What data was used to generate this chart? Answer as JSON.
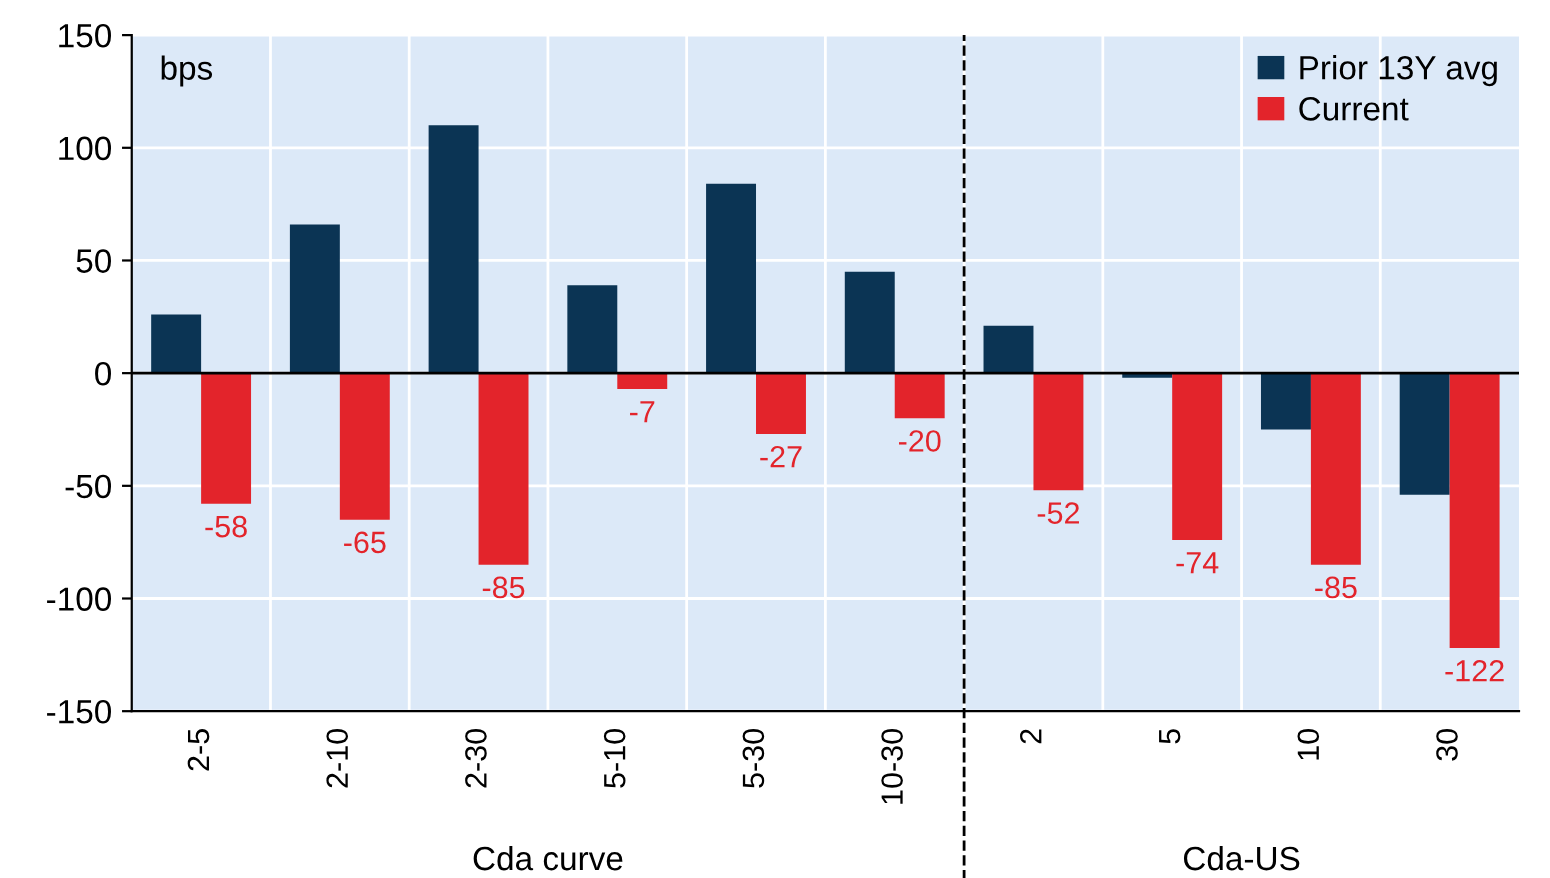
{
  "chart_data": {
    "type": "bar",
    "categories": [
      "2-5",
      "2-10",
      "2-30",
      "5-10",
      "5-30",
      "10-30",
      "2",
      "5",
      "10",
      "30"
    ],
    "series": [
      {
        "name": "Prior 13Y avg",
        "color": "#0b3454",
        "values": [
          26,
          66,
          110,
          39,
          84,
          45,
          21,
          -2,
          -25,
          -54
        ]
      },
      {
        "name": "Current",
        "color": "#e3242b",
        "values": [
          -58,
          -65,
          -85,
          -7,
          -27,
          -20,
          -52,
          -74,
          -85,
          -122
        ],
        "value_labels": [
          "-58",
          "-65",
          "-85",
          "-7",
          "-27",
          "-20",
          "-52",
          "-74",
          "-85",
          "-122"
        ]
      }
    ],
    "ylim": [
      -150,
      150
    ],
    "yticks": [
      -150,
      -100,
      -50,
      0,
      50,
      100,
      150
    ],
    "grid": true,
    "legend": "top right",
    "ref_lines": [
      {
        "axis": "x",
        "value": "2",
        "line_style": "dashed",
        "color": "#000000"
      }
    ],
    "annotations": [
      "bps",
      "Cda curve",
      "Cda-US"
    ]
  }
}
